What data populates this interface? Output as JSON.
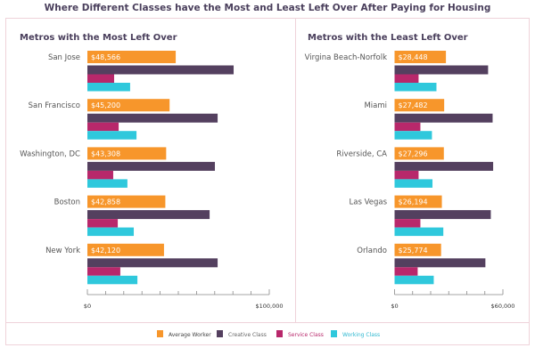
{
  "title": "Where Different Classes have the Most and Least Left Over After Paying for Housing",
  "chart_data": [
    {
      "type": "bar",
      "orientation": "horizontal",
      "title": "Metros with the Most Left Over",
      "categories": [
        "San Jose",
        "San Francisco",
        "Washington, DC",
        "Boston",
        "New York"
      ],
      "series": [
        {
          "name": "Average Worker",
          "color": "#f7962b",
          "values": [
            48566,
            45200,
            43308,
            42858,
            42120
          ],
          "labels": [
            "$48,566",
            "$45,200",
            "$43,308",
            "$42,858",
            "$42,120"
          ]
        },
        {
          "name": "Creative Class",
          "color": "#54405f",
          "values": [
            80400,
            71600,
            70100,
            67200,
            71600
          ]
        },
        {
          "name": "Service Class",
          "color": "#b8286b",
          "values": [
            14700,
            17200,
            14200,
            16700,
            18100
          ]
        },
        {
          "name": "Working Class",
          "color": "#2fc8dc",
          "values": [
            23500,
            27000,
            22000,
            25500,
            27500
          ]
        }
      ],
      "xlim": [
        0,
        100000
      ],
      "tick_step": 10000,
      "tick_labels": [
        "$0",
        "$100,000"
      ]
    },
    {
      "type": "bar",
      "orientation": "horizontal",
      "title": "Metros with the Least Left Over",
      "categories": [
        "Virgina Beach-Norfolk",
        "Miami",
        "Riverside, CA",
        "Las Vegas",
        "Orlando"
      ],
      "series": [
        {
          "name": "Average Worker",
          "color": "#f7962b",
          "values": [
            28448,
            27482,
            27296,
            26194,
            25774
          ],
          "labels": [
            "$28,448",
            "$27,482",
            "$27,296",
            "$26,194",
            "$25,774"
          ]
        },
        {
          "name": "Creative Class",
          "color": "#54405f",
          "values": [
            51800,
            54300,
            54600,
            53300,
            50300
          ]
        },
        {
          "name": "Service Class",
          "color": "#b8286b",
          "values": [
            13300,
            14300,
            13300,
            14300,
            12800
          ]
        },
        {
          "name": "Working Class",
          "color": "#2fc8dc",
          "values": [
            23200,
            20700,
            21000,
            27000,
            21700
          ]
        }
      ],
      "xlim": [
        0,
        60000
      ],
      "tick_step": 10000,
      "tick_labels": [
        "$0",
        "$60,000"
      ]
    }
  ],
  "legend": {
    "position": "bottom",
    "items": [
      {
        "label": "Average Worker",
        "color": "#f7962b",
        "text_color": "#444444"
      },
      {
        "label": "Creative Class",
        "color": "#54405f",
        "text_color": "#666666"
      },
      {
        "label": "Service Class",
        "color": "#b8286b",
        "text_color": "#b8286b"
      },
      {
        "label": "Working Class",
        "color": "#2fc8dc",
        "text_color": "#2fb8d0"
      }
    ]
  }
}
